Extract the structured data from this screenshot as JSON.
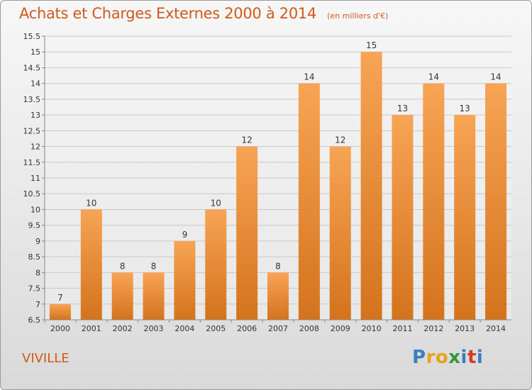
{
  "header": {
    "title": "Achats et Charges Externes 2000 à 2014",
    "subtitle": "(en milliers d'€)"
  },
  "footer": {
    "commune": "VIVILLE",
    "logo_letters": [
      "P",
      "r",
      "o",
      "x",
      "i",
      "t",
      "i"
    ],
    "logo_colors": [
      "#3a7fc1",
      "#e8a21a",
      "#e8a21a",
      "#2f9a3a",
      "#3a7fc1",
      "#d43a2a",
      "#3a7fc1"
    ]
  },
  "colors": {
    "bar_top": "#f7a455",
    "bar_bottom": "#d4731c",
    "title": "#cf5a1c",
    "grid": "#c8c8c8"
  },
  "chart_data": {
    "type": "bar",
    "categories": [
      "2000",
      "2001",
      "2002",
      "2003",
      "2004",
      "2005",
      "2006",
      "2007",
      "2008",
      "2009",
      "2010",
      "2011",
      "2012",
      "2013",
      "2014"
    ],
    "values": [
      7,
      10,
      8,
      8,
      9,
      10,
      12,
      8,
      14,
      12,
      15,
      13,
      14,
      13,
      14
    ],
    "ylim": [
      6.5,
      15.5
    ],
    "yticks": [
      "6.5",
      "7",
      "7.5",
      "8",
      "8.5",
      "9",
      "9.5",
      "10",
      "10.5",
      "11",
      "11.5",
      "12",
      "12.5",
      "13",
      "13.5",
      "14",
      "14.5",
      "15",
      "15.5"
    ],
    "grid": true
  }
}
